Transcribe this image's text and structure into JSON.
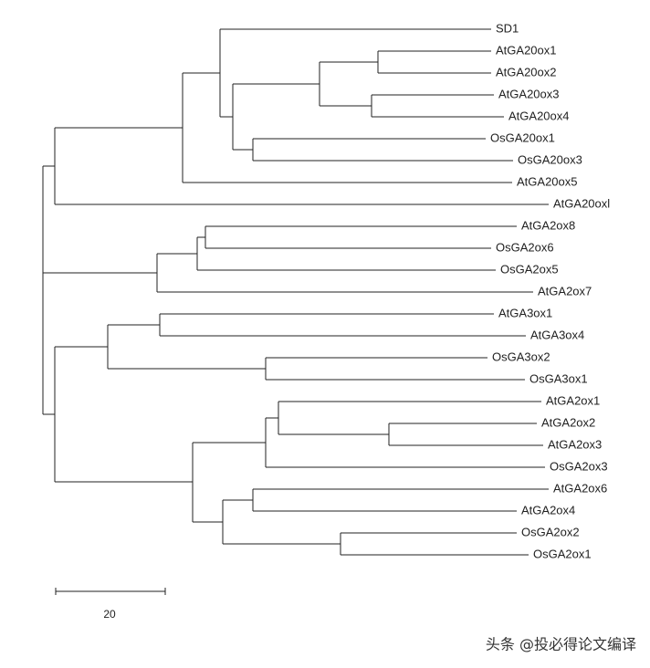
{
  "leaves": [
    "SD1",
    "AtGA20ox1",
    "AtGA20ox2",
    "AtGA20ox3",
    "AtGA20ox4",
    "OsGA20ox1",
    "OsGA20ox3",
    "AtGA20ox5",
    "AtGA20oxl",
    "AtGA2ox8",
    "OsGA2ox6",
    "OsGA2ox5",
    "AtGA2ox7",
    "AtGA3ox1",
    "AtGA3ox4",
    "OsGA3ox2",
    "OsGA3ox1",
    "AtGA2ox1",
    "AtGA2ox2",
    "AtGA2ox3",
    "OsGA2ox3",
    "AtGA2ox6",
    "AtGA2ox4",
    "OsGA2ox2",
    "OsGA2ox1"
  ],
  "scale_bar": {
    "label": "20"
  },
  "watermark": "头条 @投必得论文编译"
}
